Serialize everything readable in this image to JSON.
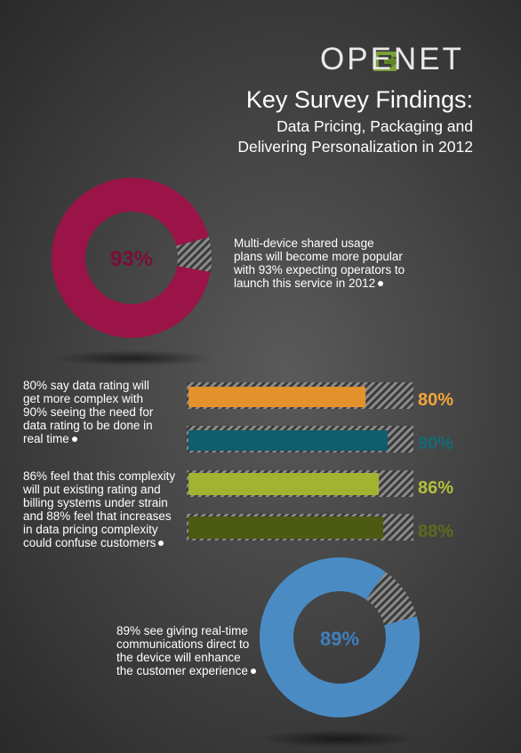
{
  "brand": {
    "logo_text": "OPENET",
    "logo_color": "#7aa03a"
  },
  "title": "Key Survey Findings:",
  "subtitle_line1": "Data Pricing, Packaging and",
  "subtitle_line2": "Delivering Personalization in 2012",
  "findings": {
    "multi_device": {
      "text_lines": [
        "Multi-device shared usage",
        "plans will become more popular",
        "with 93% expecting operators to",
        "launch this service in 2012"
      ]
    },
    "rating": {
      "text_lines": [
        "80% say data rating will",
        "get more complex with",
        "90% seeing the need for",
        "data rating to be done in",
        "real time"
      ]
    },
    "complexity": {
      "text_lines": [
        "86% feel that this complexity",
        "will put existing rating and",
        "billing systems under strain",
        "and 88% feel that increases",
        "in data pricing complexity",
        "could confuse customers"
      ]
    },
    "real_time": {
      "text_lines": [
        "89% see giving real-time",
        "communications direct to",
        "the device will enhance",
        "the customer experience"
      ]
    }
  },
  "chart_data": [
    {
      "type": "pie",
      "variant": "donut",
      "value": 93,
      "label": "93%",
      "colors": {
        "fill": "#9b1448",
        "label": "#7a0e38"
      }
    },
    {
      "type": "bar",
      "orientation": "horizontal",
      "xlim": [
        0,
        100
      ],
      "series": [
        {
          "value": 80,
          "label": "80%",
          "color": "#e3912c",
          "label_color": "#f3a53a"
        },
        {
          "value": 90,
          "label": "90%",
          "color": "#0f5e6e",
          "label_color": "#136a78"
        },
        {
          "value": 86,
          "label": "86%",
          "color": "#a2b231",
          "label_color": "#b2bf3c"
        },
        {
          "value": 88,
          "label": "88%",
          "color": "#4d5a14",
          "label_color": "#5d6b1a"
        }
      ]
    },
    {
      "type": "pie",
      "variant": "donut",
      "value": 89,
      "label": "89%",
      "colors": {
        "fill": "#4a8bc4",
        "label": "#3f7fbf"
      }
    }
  ]
}
